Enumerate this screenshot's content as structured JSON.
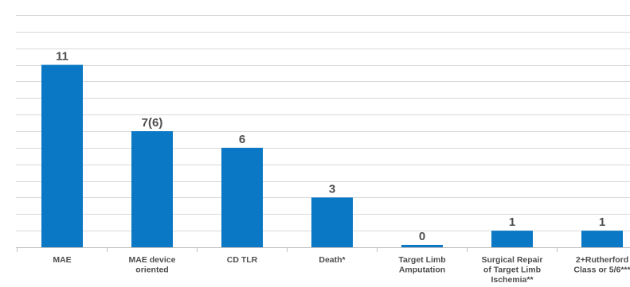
{
  "chart_data": {
    "type": "bar",
    "categories": [
      "MAE",
      "MAE device oriented",
      "CD TLR",
      "Death*",
      "Target Limb Amputation",
      "Surgical Repair of Target Limb Ischemia**",
      "2+Rutherford Class or 5/6***"
    ],
    "category_label_lines": [
      [
        "MAE"
      ],
      [
        "MAE device",
        "oriented"
      ],
      [
        "CD TLR"
      ],
      [
        "Death*"
      ],
      [
        "Target Limb",
        "Amputation"
      ],
      [
        "Surgical Repair",
        "of Target Limb",
        "Ischemia**"
      ],
      [
        "2+Rutherford",
        "Class or 5/6***"
      ]
    ],
    "values": [
      11,
      7,
      6,
      3,
      0,
      1,
      1
    ],
    "data_labels": [
      "11",
      "7(6)",
      "6",
      "3",
      "0",
      "1",
      "1"
    ],
    "ylim": [
      0,
      14
    ],
    "grid": true,
    "bar_color": "#0a78c4",
    "title": "",
    "xlabel": "",
    "ylabel": ""
  }
}
